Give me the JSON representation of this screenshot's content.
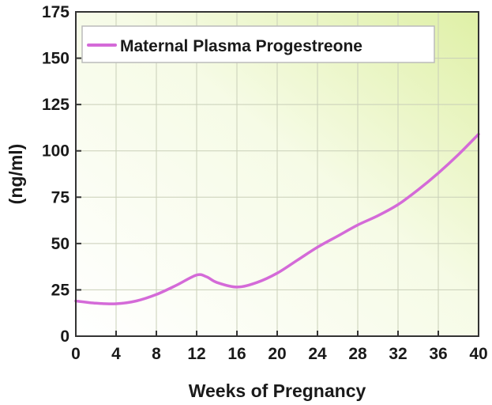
{
  "chart_data": {
    "type": "line",
    "xlabel": "Weeks of Pregnancy",
    "ylabel": "(ng/ml)",
    "xlim": [
      0,
      40
    ],
    "ylim": [
      0,
      175
    ],
    "xticks": [
      0,
      4,
      8,
      12,
      16,
      20,
      24,
      28,
      32,
      36,
      40
    ],
    "yticks": [
      0,
      25,
      50,
      75,
      100,
      125,
      150,
      175
    ],
    "grid": true,
    "legend": "top-left",
    "series": [
      {
        "name": "Maternal Plasma Progestreone",
        "color": "#d46ad8",
        "x": [
          0,
          2,
          4,
          6,
          8,
          10,
          12,
          13,
          14,
          16,
          18,
          20,
          22,
          24,
          26,
          28,
          30,
          32,
          34,
          36,
          38,
          40
        ],
        "y": [
          19,
          17.8,
          17.5,
          19,
          22.5,
          27.5,
          33,
          32,
          29,
          26.5,
          29,
          34,
          41,
          48,
          54,
          60,
          65,
          71,
          79,
          88,
          98,
          109
        ]
      }
    ]
  }
}
